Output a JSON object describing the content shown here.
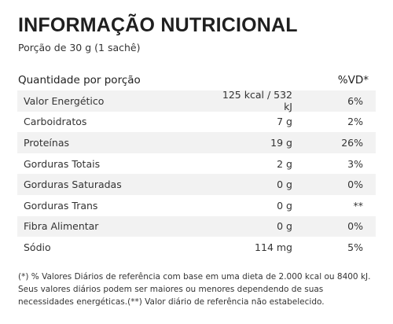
{
  "title": "INFORMAÇÃO NUTRICIONAL",
  "portion": "Porção de 30 g (1 sachê)",
  "header": {
    "left": "Quantidade por porção",
    "right": "%VD*"
  },
  "rows": [
    {
      "name": "Valor Energético",
      "amount": "125 kcal / 532 kJ",
      "vd": "6%"
    },
    {
      "name": "Carboidratos",
      "amount": "7 g",
      "vd": "2%"
    },
    {
      "name": "Proteínas",
      "amount": "19 g",
      "vd": "26%"
    },
    {
      "name": "Gorduras Totais",
      "amount": "2 g",
      "vd": "3%"
    },
    {
      "name": "Gorduras Saturadas",
      "amount": "0 g",
      "vd": "0%"
    },
    {
      "name": "Gorduras Trans",
      "amount": "0 g",
      "vd": "**"
    },
    {
      "name": "Fibra Alimentar",
      "amount": "0 g",
      "vd": "0%"
    },
    {
      "name": "Sódio",
      "amount": "114 mg",
      "vd": "5%"
    }
  ],
  "footnote": {
    "line1": "(*) % Valores Diários de referência com base em uma dieta de 2.000 kcal ou 8400 kJ.",
    "line2": "Seus valores diários podem ser maiores ou menores dependendo de suas",
    "line3": "necessidades energéticas.(**) Valor diário de referência não estabelecido."
  }
}
